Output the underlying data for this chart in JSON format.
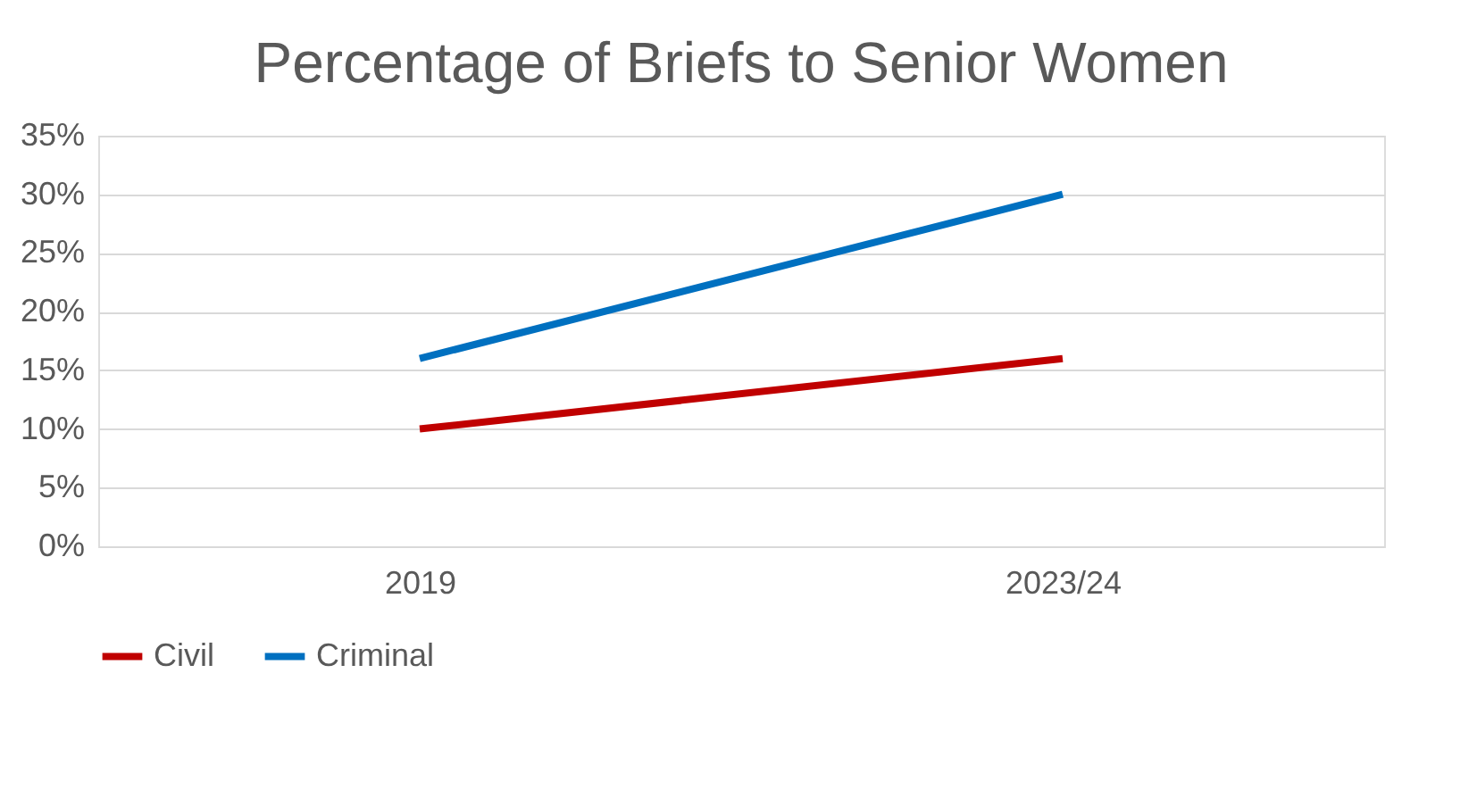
{
  "chart_data": {
    "type": "line",
    "title": "Percentage of Briefs to Senior Women",
    "categories": [
      "2019",
      "2023/24"
    ],
    "series": [
      {
        "name": "Civil",
        "color": "#c00000",
        "values": [
          10,
          16
        ]
      },
      {
        "name": "Criminal",
        "color": "#0070c0",
        "values": [
          16,
          30
        ]
      }
    ],
    "ylim": [
      0,
      35
    ],
    "yticks": [
      {
        "value": 0,
        "label": "0%"
      },
      {
        "value": 5,
        "label": "5%"
      },
      {
        "value": 10,
        "label": "10%"
      },
      {
        "value": 15,
        "label": "15%"
      },
      {
        "value": 20,
        "label": "20%"
      },
      {
        "value": 25,
        "label": "25%"
      },
      {
        "value": 30,
        "label": "30%"
      },
      {
        "value": 35,
        "label": "35%"
      }
    ],
    "grid": "y",
    "legend": "bottom",
    "marker": "none",
    "line_style": "solid"
  }
}
